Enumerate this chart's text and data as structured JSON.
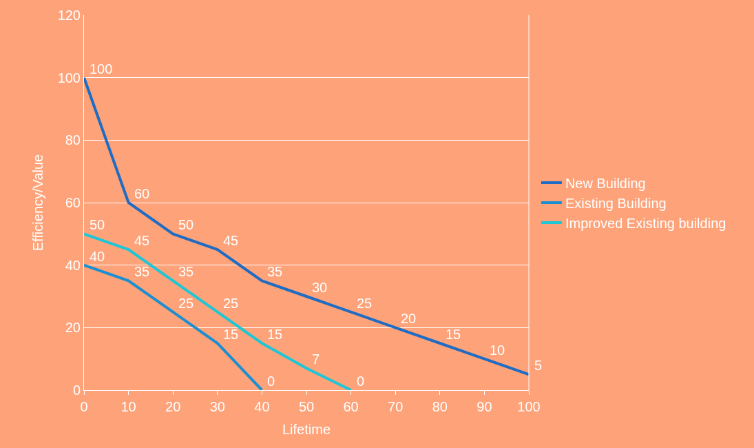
{
  "chart_data": {
    "type": "line",
    "xlabel": "Lifetime",
    "ylabel": "Efficiency/Value",
    "series": [
      {
        "name": "New Building",
        "color": "#1f6cc4",
        "x": [
          0,
          10,
          20,
          30,
          40,
          50,
          60,
          70,
          80,
          90,
          100
        ],
        "values": [
          100,
          60,
          50,
          45,
          35,
          30,
          25,
          20,
          15,
          10,
          5
        ]
      },
      {
        "name": "Existing Building",
        "color": "#1b8fd0",
        "x": [
          0,
          10,
          20,
          30,
          40
        ],
        "values": [
          40,
          35,
          25,
          15,
          0
        ]
      },
      {
        "name": "Improved Existing building",
        "color": "#1ec6d6",
        "x": [
          0,
          10,
          20,
          30,
          40,
          50,
          60
        ],
        "values": [
          50,
          45,
          35,
          25,
          15,
          7,
          0
        ]
      }
    ],
    "xlim": [
      0,
      100
    ],
    "xticks": [
      0,
      10,
      20,
      30,
      40,
      50,
      60,
      70,
      80,
      90,
      100
    ],
    "ylim": [
      0,
      120
    ],
    "yticks": [
      0,
      20,
      40,
      60,
      80,
      100,
      120
    ],
    "grid": "y",
    "legend": "right",
    "data_labels": true,
    "marker": "none",
    "line_style": "solid"
  }
}
